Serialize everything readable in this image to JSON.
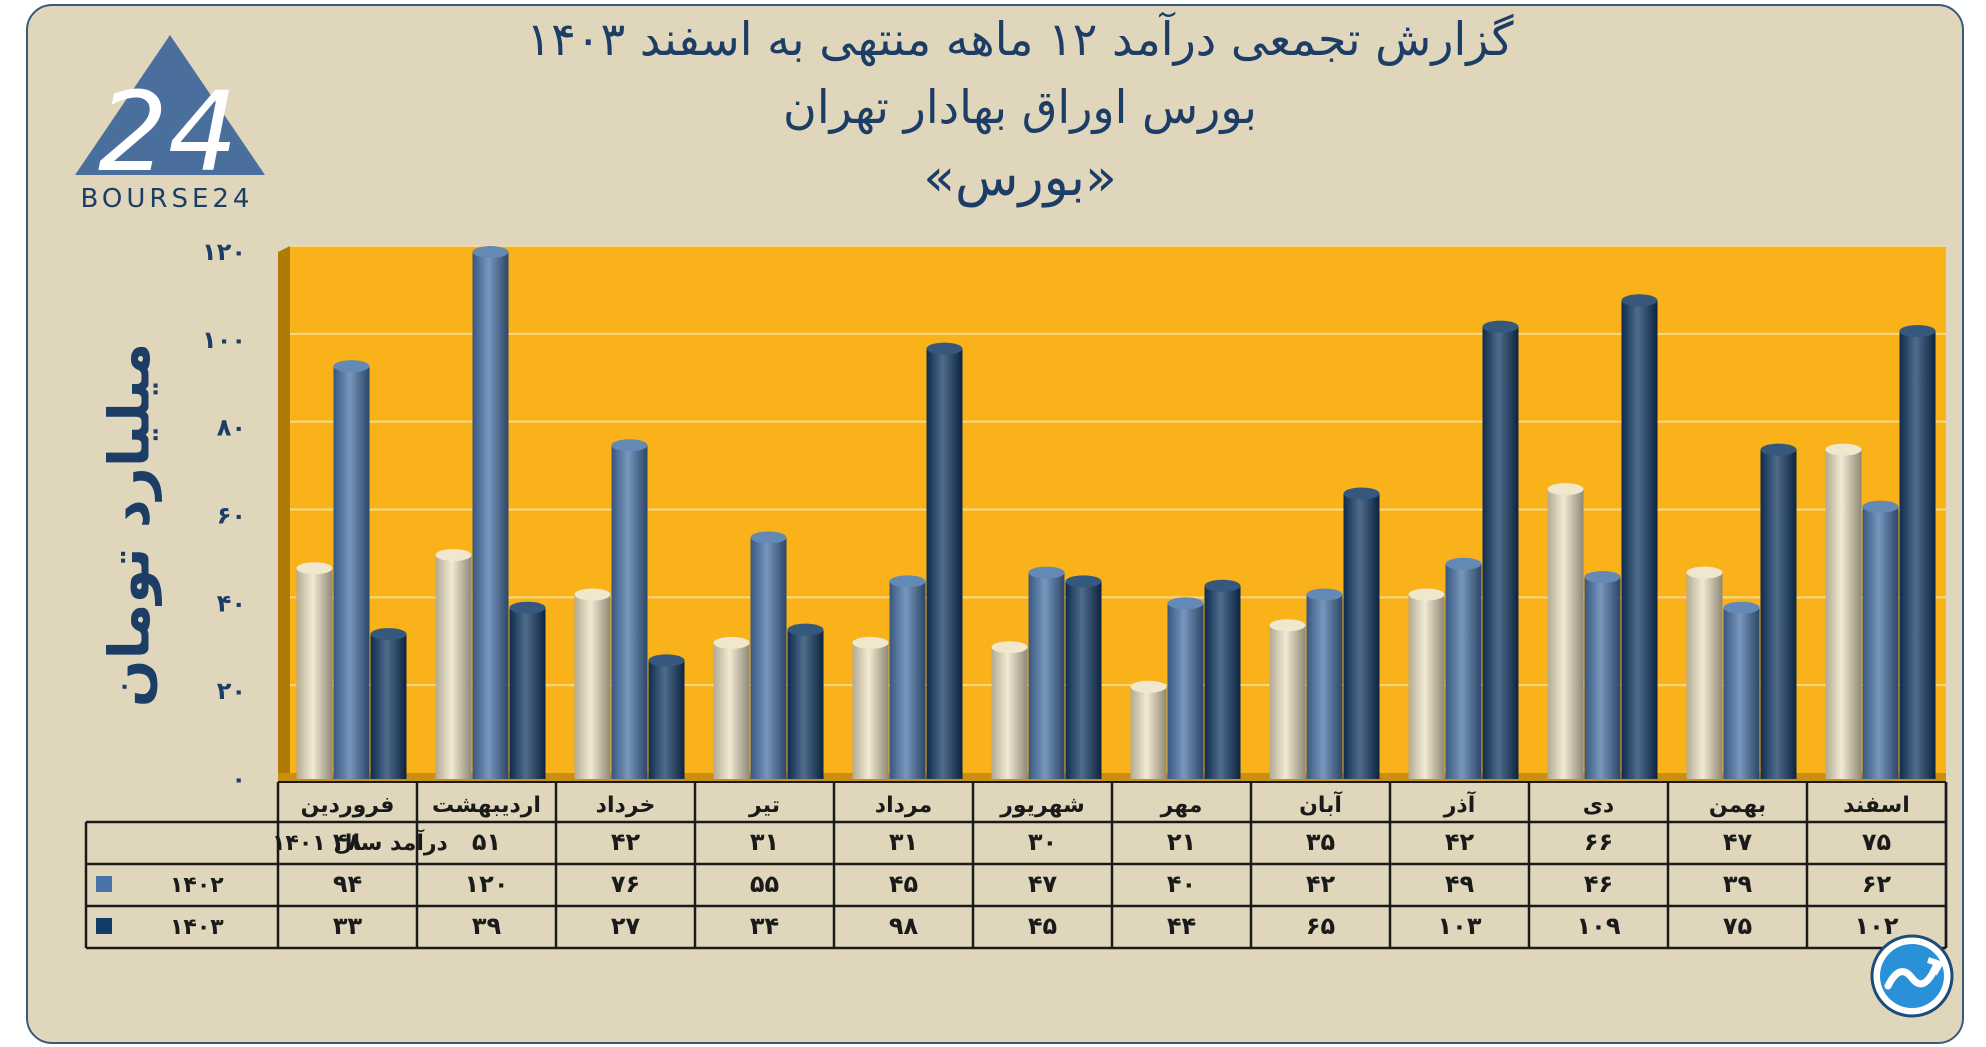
{
  "header": {
    "title_line1": "گزارش تجمعی درآمد ۱۲ ماهه منتهی به اسفند ۱۴۰۳",
    "title_line2": "بورس اوراق بهادار تهران",
    "title_line3": "«بورس»",
    "logo_text": "BOURSE24",
    "logo_digits": "24"
  },
  "chart_data": {
    "type": "bar",
    "ylabel": "میلیارد تومان",
    "ylim": [
      0,
      120
    ],
    "yticks": [
      "۰",
      "۲۰",
      "۴۰",
      "۶۰",
      "۸۰",
      "۱۰۰",
      "۱۲۰"
    ],
    "categories": [
      "فروردین",
      "اردیبهشت",
      "خرداد",
      "تیر",
      "مرداد",
      "شهریور",
      "مهر",
      "آبان",
      "آذر",
      "دی",
      "بهمن",
      "اسفند"
    ],
    "series": [
      {
        "name": "درآمد  سال ۱۴۰۱",
        "values": [
          48,
          51,
          42,
          31,
          31,
          30,
          21,
          35,
          42,
          66,
          47,
          75
        ],
        "labels": [
          "۴۸",
          "۵۱",
          "۴۲",
          "۳۱",
          "۳۱",
          "۳۰",
          "۲۱",
          "۳۵",
          "۴۲",
          "۶۶",
          "۴۷",
          "۷۵"
        ],
        "color": "#ede3c4"
      },
      {
        "name": "۱۴۰۲",
        "values": [
          94,
          120,
          76,
          55,
          45,
          47,
          40,
          42,
          49,
          46,
          39,
          62
        ],
        "labels": [
          "۹۴",
          "۱۲۰",
          "۷۶",
          "۵۵",
          "۴۵",
          "۴۷",
          "۴۰",
          "۴۲",
          "۴۹",
          "۴۶",
          "۳۹",
          "۶۲"
        ],
        "color": "#4a74a8"
      },
      {
        "name": "۱۴۰۳",
        "values": [
          33,
          39,
          27,
          34,
          98,
          45,
          44,
          65,
          103,
          109,
          75,
          102
        ],
        "labels": [
          "۳۳",
          "۳۹",
          "۲۷",
          "۳۴",
          "۹۸",
          "۴۵",
          "۴۴",
          "۶۵",
          "۱۰۳",
          "۱۰۹",
          "۷۵",
          "۱۰۲"
        ],
        "color": "#143b66"
      }
    ],
    "plot_background": "#f9b21a",
    "grid": true
  }
}
